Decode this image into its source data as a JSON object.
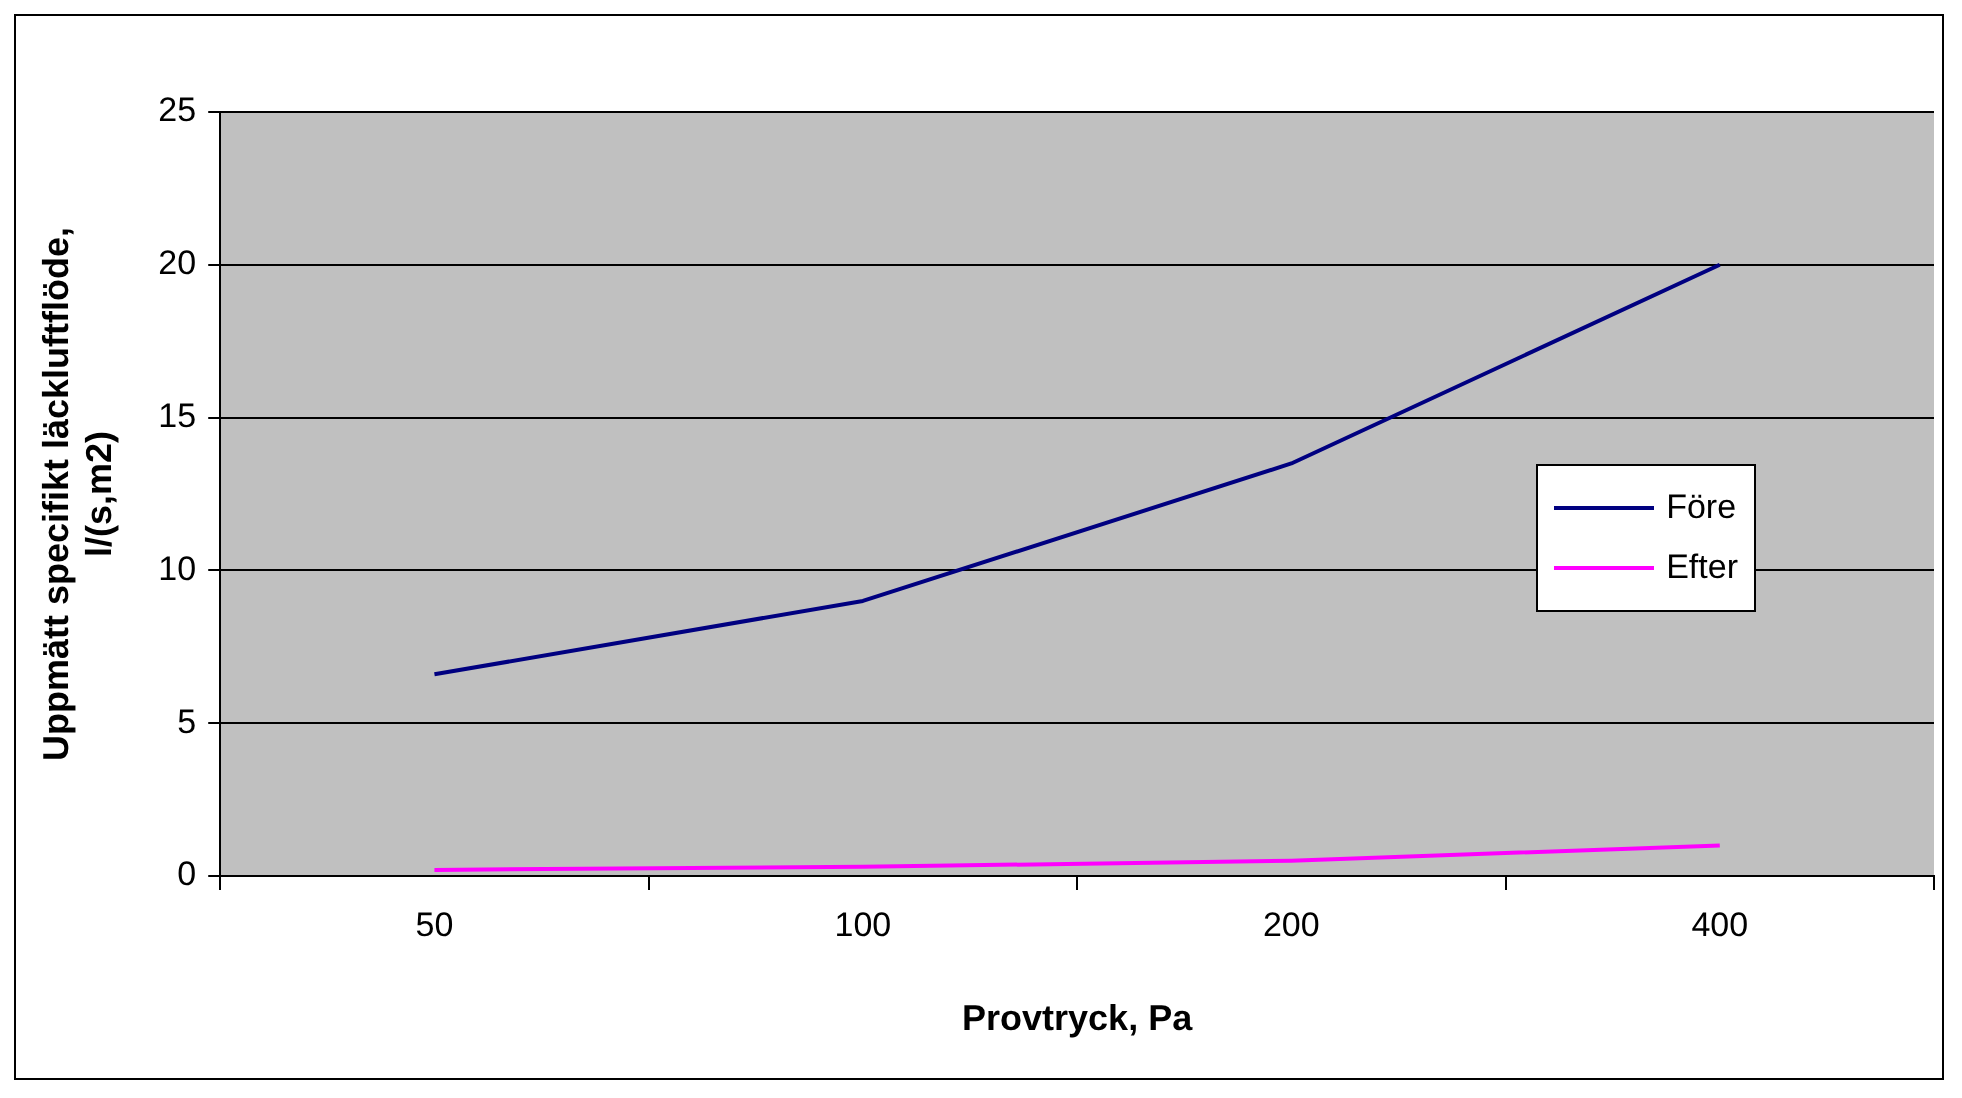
{
  "chart_data": {
    "type": "line",
    "xlabel": "Provtryck, Pa",
    "ylabel": "Uppmätt specifikt läckluftflöde, l/(s,m2)",
    "categories": [
      "50",
      "100",
      "200",
      "400"
    ],
    "series": [
      {
        "name": "Före",
        "color": "#000080",
        "values": [
          6.6,
          9.0,
          13.5,
          20
        ]
      },
      {
        "name": "Efter",
        "color": "#ff00ff",
        "values": [
          0.2,
          0.3,
          0.5,
          1.0
        ]
      }
    ],
    "ylim": [
      0,
      25
    ],
    "yticks": [
      0,
      5,
      10,
      15,
      20,
      25
    ],
    "grid": "y",
    "legend": "right",
    "marker": "none",
    "line_style": "solid"
  }
}
